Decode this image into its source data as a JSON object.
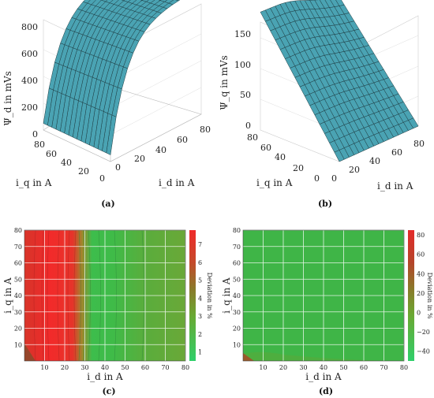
{
  "chart_data": [
    {
      "panel": "(a)",
      "type": "surface3d",
      "xlabel": "i_d in A",
      "ylabel": "i_q in A",
      "zlabel": "Ψ_d in mVs",
      "x_ticks": [
        "0",
        "20",
        "40",
        "60",
        "80"
      ],
      "y_ticks": [
        "0",
        "20",
        "40",
        "60",
        "80"
      ],
      "z_ticks": [
        "0",
        "200",
        "400",
        "600",
        "800"
      ],
      "zlim": [
        0,
        800
      ],
      "surface_color": "#4aa3b3",
      "description_values": {
        "min": 0,
        "max": 780
      }
    },
    {
      "panel": "(b)",
      "type": "surface3d",
      "xlabel": "i_d in A",
      "ylabel": "i_q in A",
      "zlabel": "Ψ_q in mVs",
      "x_ticks": [
        "0",
        "20",
        "40",
        "60",
        "80"
      ],
      "y_ticks": [
        "0",
        "20",
        "40",
        "60",
        "80"
      ],
      "z_ticks": [
        "0",
        "50",
        "100",
        "150"
      ],
      "zlim": [
        0,
        150
      ],
      "surface_color": "#4aa3b3"
    },
    {
      "panel": "(c)",
      "type": "heatmap",
      "xlabel": "i_d in A",
      "ylabel": "i_q in A",
      "colorbar_label": "Deviation in %",
      "x_ticks": [
        "10",
        "20",
        "30",
        "40",
        "50",
        "60",
        "70",
        "80"
      ],
      "y_ticks": [
        "10",
        "20",
        "30",
        "40",
        "50",
        "60",
        "70",
        "80"
      ],
      "colorbar_ticks": [
        "1",
        "2",
        "3",
        "4",
        "5",
        "6",
        "7"
      ],
      "colorbar_range": [
        0.5,
        7.8
      ]
    },
    {
      "panel": "(d)",
      "type": "heatmap",
      "xlabel": "i_d in A",
      "ylabel": "i_q in A",
      "colorbar_label": "Deviation in %",
      "x_ticks": [
        "10",
        "20",
        "30",
        "40",
        "50",
        "60",
        "70",
        "80"
      ],
      "y_ticks": [
        "10",
        "20",
        "30",
        "40",
        "50",
        "60",
        "70",
        "80"
      ],
      "colorbar_ticks": [
        "−40",
        "−20",
        "0",
        "20",
        "40",
        "60",
        "80"
      ],
      "colorbar_range": [
        -50,
        85
      ]
    }
  ],
  "labels": {
    "a": "(a)",
    "b": "(b)",
    "c": "(c)",
    "d": "(d)"
  }
}
